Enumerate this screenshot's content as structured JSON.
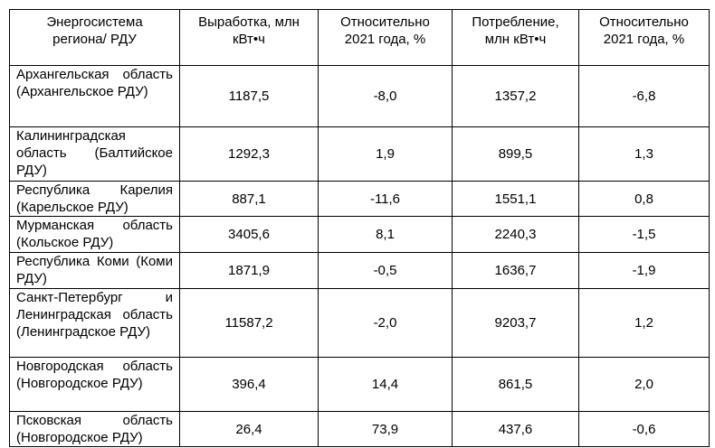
{
  "table": {
    "header": [
      "Энергосистема\nрегиона/ РДУ",
      "Выработка, млн\nкВт•ч",
      "Относительно\n2021 года, %",
      "Потребление,\nмлн кВт•ч",
      "Относительно\n2021 года, %"
    ],
    "rows": [
      [
        "Архангельская область (Архангельское РДУ)",
        "1187,5",
        "-8,0",
        "1357,2",
        "-6,8"
      ],
      [
        "Калининградская область (Балтийское РДУ)",
        "1292,3",
        "1,9",
        "899,5",
        "1,3"
      ],
      [
        "Республика Карелия (Карельское РДУ)",
        "887,1",
        "-11,6",
        "1551,1",
        "0,8"
      ],
      [
        "Мурманская область (Кольское РДУ)",
        "3405,6",
        "8,1",
        "2240,3",
        "-1,5"
      ],
      [
        "Республика Коми (Коми РДУ)",
        "1871,9",
        "-0,5",
        "1636,7",
        "-1,9"
      ],
      [
        "Санкт-Петербург и Ленинградская область (Ленинградское РДУ)",
        "11587,2",
        "-2,0",
        "9203,7",
        "1,2"
      ],
      [
        "Новгородская область (Новгородское РДУ)",
        "396,4",
        "14,4",
        "861,5",
        "2,0"
      ],
      [
        "Псковская область (Новгородское РДУ)",
        "26,4",
        "73,9",
        "437,6",
        "-0,6"
      ]
    ]
  }
}
